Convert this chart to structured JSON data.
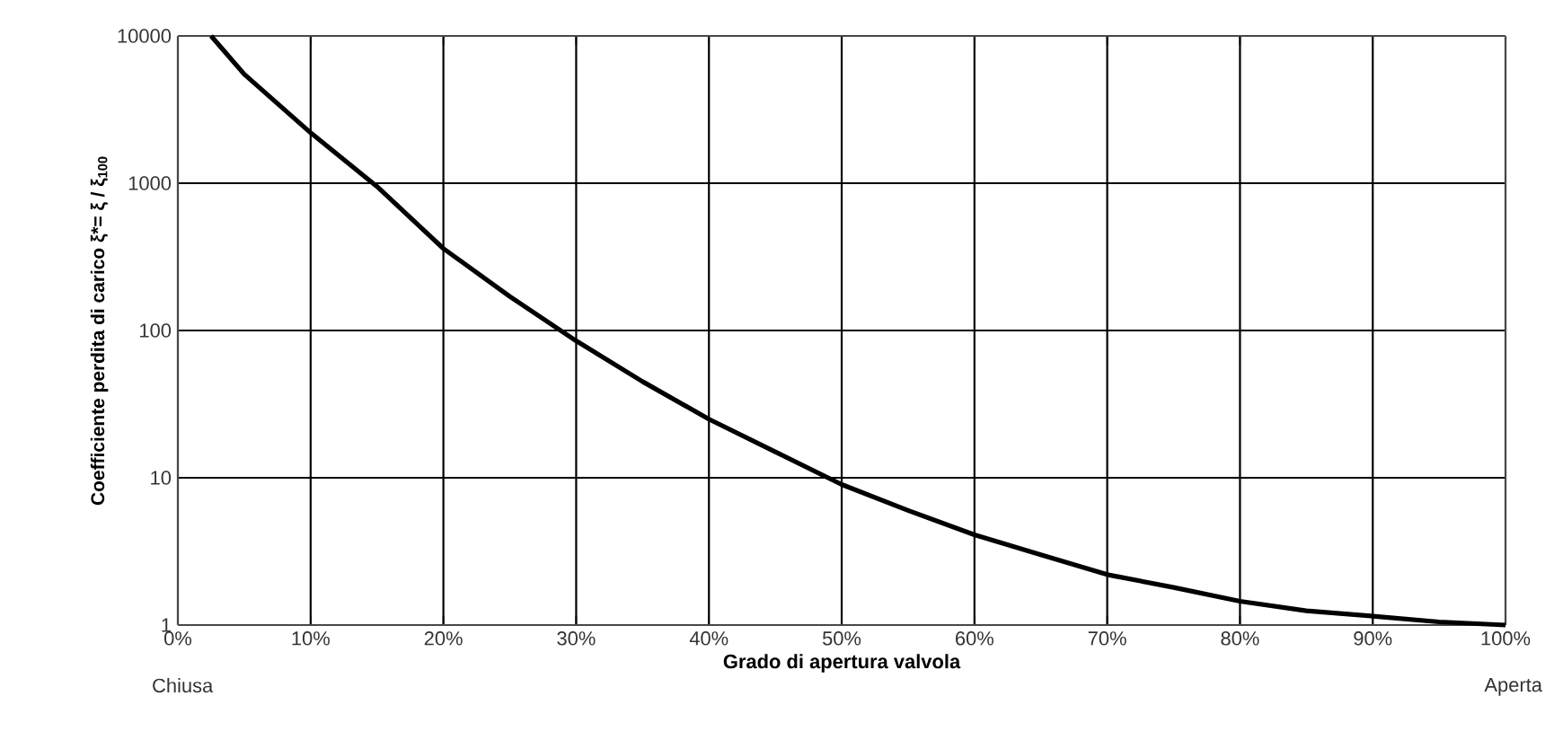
{
  "chart_data": {
    "type": "line",
    "xlabel": "Grado di apertura valvola",
    "ylabel": "Coefficiente perdita di carico ξ*= ξ / ξ$_{100}$",
    "annotations": [
      "Chiusa",
      "Aperta"
    ],
    "series": [
      {
        "color": "#000000",
        "x": [
          2.5,
          5,
          10,
          15,
          20,
          25,
          30,
          35,
          40,
          45,
          50,
          55,
          60,
          65,
          70,
          75,
          80,
          85,
          90,
          95,
          100
        ],
        "values": [
          10000,
          5500,
          2200,
          950,
          360,
          170,
          85,
          45,
          25,
          15,
          9,
          6,
          4.1,
          3,
          2.2,
          1.8,
          1.45,
          1.25,
          1.15,
          1.05,
          1.0
        ]
      }
    ],
    "log": "y",
    "grid": true,
    "marker": "none",
    "line_style": "solid",
    "xlim": [
      0,
      100
    ],
    "ylim": [
      1,
      10000
    ],
    "xticks": [
      {
        "value": 0,
        "label": "0%"
      },
      {
        "value": 10,
        "label": "10%"
      },
      {
        "value": 20,
        "label": "20%"
      },
      {
        "value": 30,
        "label": "30%"
      },
      {
        "value": 40,
        "label": "40%"
      },
      {
        "value": 50,
        "label": "50%"
      },
      {
        "value": 60,
        "label": "60%"
      },
      {
        "value": 70,
        "label": "70%"
      },
      {
        "value": 80,
        "label": "80%"
      },
      {
        "value": 90,
        "label": "90%"
      },
      {
        "value": 100,
        "label": "100%"
      }
    ],
    "yticks": [
      1,
      10,
      100,
      1000,
      10000
    ]
  }
}
